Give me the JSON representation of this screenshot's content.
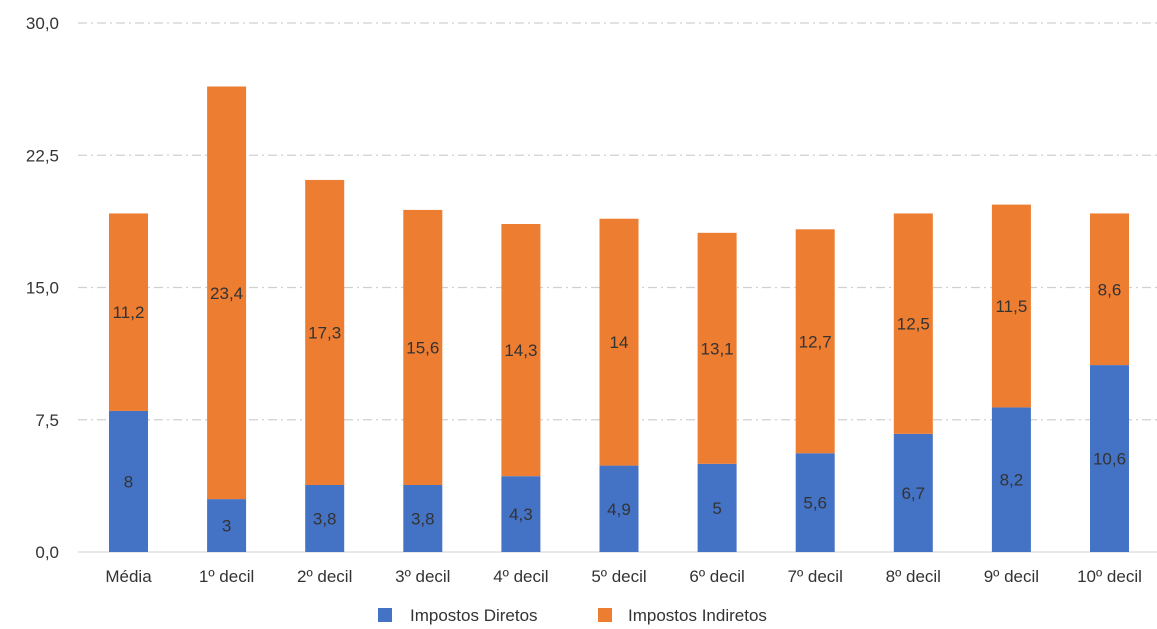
{
  "chart_data": {
    "type": "bar",
    "stacked": true,
    "categories": [
      "Média",
      "1º decil",
      "2º decil",
      "3º decil",
      "4º decil",
      "5º decil",
      "6º decil",
      "7º decil",
      "8º decil",
      "9º decil",
      "10º decil"
    ],
    "series": [
      {
        "name": "Impostos Diretos",
        "color": "#4472C4",
        "values": [
          8,
          3,
          3.8,
          3.8,
          4.3,
          4.9,
          5,
          5.6,
          6.7,
          8.2,
          10.6
        ],
        "labels": [
          "8",
          "3",
          "3,8",
          "3,8",
          "4,3",
          "4,9",
          "5",
          "5,6",
          "6,7",
          "8,2",
          "10,6"
        ]
      },
      {
        "name": "Impostos Indiretos",
        "color": "#ED7D31",
        "values": [
          11.2,
          23.4,
          17.3,
          15.6,
          14.3,
          14,
          13.1,
          12.7,
          12.5,
          11.5,
          8.6
        ],
        "labels": [
          "11,2",
          "23,4",
          "17,3",
          "15,6",
          "14,3",
          "14",
          "13,1",
          "12,7",
          "12,5",
          "11,5",
          "8,6"
        ]
      }
    ],
    "ylim": [
      0,
      30
    ],
    "yticks": [
      0,
      7.5,
      15,
      22.5,
      30
    ],
    "ytick_labels": [
      "0,0",
      "7,5",
      "15,0",
      "22,5",
      "30,0"
    ],
    "grid": true,
    "legend_position": "bottom",
    "title": "",
    "xlabel": "",
    "ylabel": ""
  }
}
